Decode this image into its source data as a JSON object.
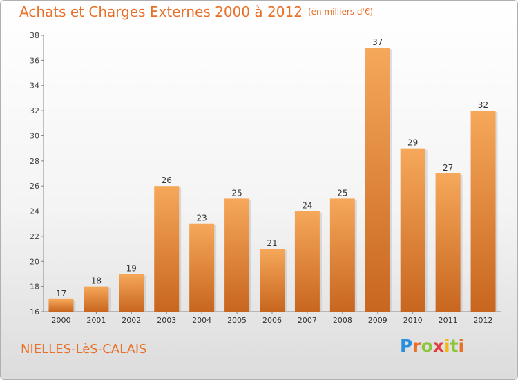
{
  "chart_data": {
    "type": "bar",
    "title": "Achats et Charges Externes 2000 à 2012",
    "subtitle": "(en milliers d'€)",
    "categories": [
      "2000",
      "2001",
      "2002",
      "2003",
      "2004",
      "2005",
      "2006",
      "2007",
      "2008",
      "2009",
      "2010",
      "2011",
      "2012"
    ],
    "values": [
      17,
      18,
      19,
      26,
      23,
      25,
      21,
      24,
      25,
      37,
      29,
      27,
      32
    ],
    "ylim": [
      16,
      38
    ],
    "yticks": [
      16,
      18,
      20,
      22,
      24,
      26,
      28,
      30,
      32,
      34,
      36,
      38
    ],
    "grid": false,
    "colors": {
      "bar_light": "#f6a85a",
      "bar_dark": "#c8661f",
      "accent": "#e8712a"
    }
  },
  "footer": {
    "town": "NIELLES-LèS-CALAIS",
    "logo_text": "Proxiti"
  }
}
